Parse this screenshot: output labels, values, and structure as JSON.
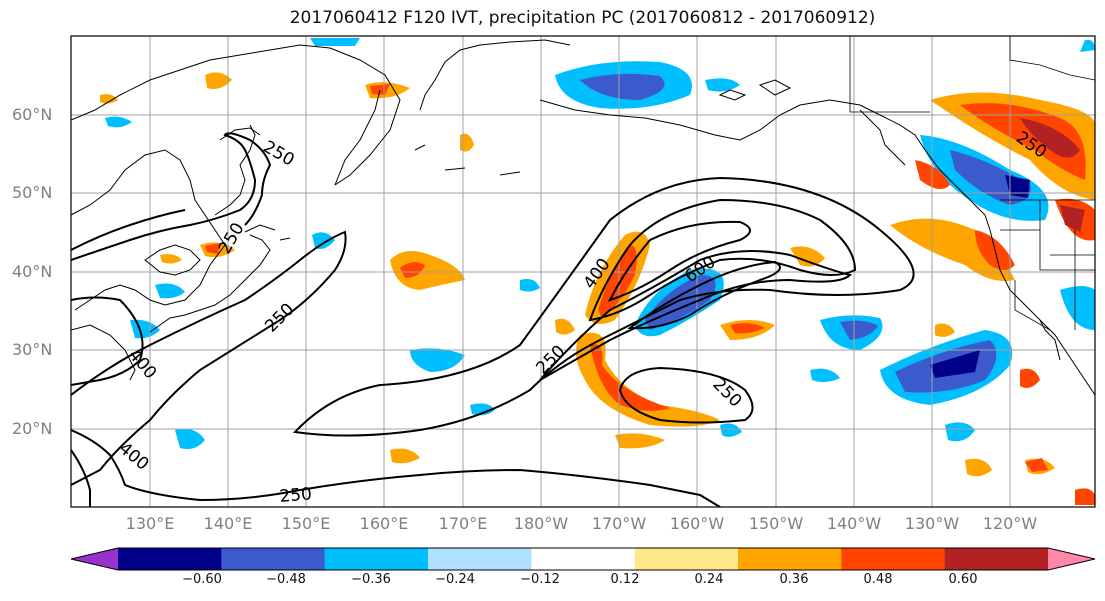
{
  "title": "2017060412 F120 IVT, precipitation PC (2017060812 - 2017060912)",
  "lat_labels": [
    "60°N",
    "50°N",
    "40°N",
    "30°N",
    "20°N"
  ],
  "lon_labels": [
    "130°E",
    "140°E",
    "150°E",
    "160°E",
    "170°E",
    "180°W",
    "170°W",
    "160°W",
    "150°W",
    "140°W",
    "130°W",
    "120°W"
  ],
  "contour_labels": [
    "250",
    "250",
    "250",
    "250",
    "250",
    "250",
    "250",
    "400",
    "400",
    "400",
    "600"
  ],
  "colorbar": {
    "ticks": [
      "−0.60",
      "−0.48",
      "−0.36",
      "−0.24",
      "−0.12",
      "0.12",
      "0.24",
      "0.36",
      "0.48",
      "0.60"
    ],
    "colors": [
      "#9932cc",
      "#00008b",
      "#3b5bcc",
      "#00bfff",
      "#b0e0ff",
      "#ffffff",
      "#ffe88a",
      "#ffa500",
      "#ff4500",
      "#b22222",
      "#ff88aa"
    ]
  }
}
